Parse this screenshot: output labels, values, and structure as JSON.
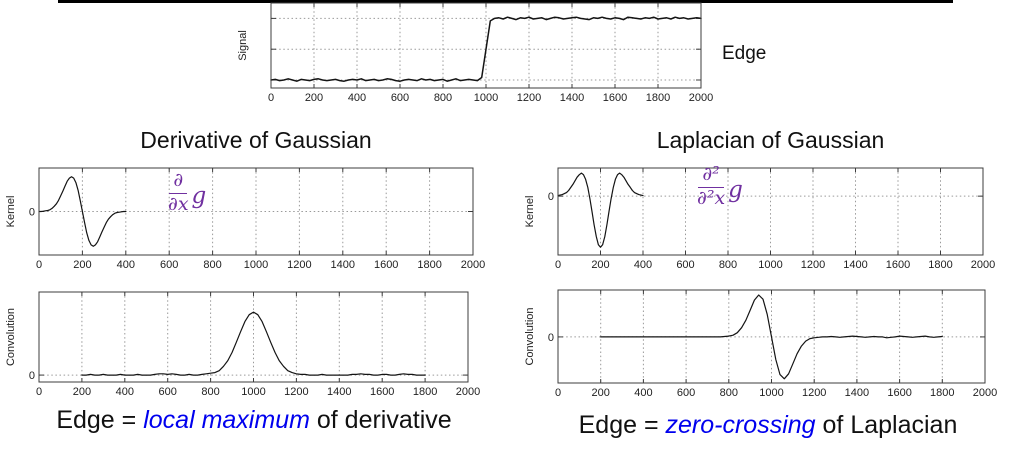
{
  "slide": {
    "background": "#ffffff",
    "accent_purple": "#7030a0",
    "accent_blue": "#0000ee",
    "edge_label": "Edge"
  },
  "left_panel": {
    "title": "Derivative of Gaussian",
    "formula": {
      "numerator": "∂",
      "denominator": "∂x",
      "factor": "g"
    },
    "caption": {
      "prefix": "Edge = ",
      "highlight": "local maximum",
      "suffix": " of derivative"
    }
  },
  "right_panel": {
    "title": "Laplacian of Gaussian",
    "formula": {
      "numerator": "∂²",
      "denominator": "∂²x",
      "factor": "g"
    },
    "caption": {
      "prefix": "Edge = ",
      "highlight": "zero-crossing",
      "suffix": " of Laplacian"
    }
  },
  "chart_data": [
    {
      "id": "signal",
      "type": "line",
      "ylabel": "Signal",
      "xlim": [
        0,
        2000
      ],
      "xticks": [
        0,
        200,
        400,
        600,
        800,
        1000,
        1200,
        1400,
        1600,
        1800,
        2000
      ],
      "ylim": [
        -0.13,
        1.25
      ],
      "hlines": [
        0,
        0.5,
        1
      ],
      "yticks": [
        {
          "v": 0,
          "label": ""
        },
        {
          "v": 0.5,
          "label": ""
        },
        {
          "v": 1,
          "label": ""
        }
      ],
      "thick": true,
      "series": {
        "x_start": 0,
        "x_step": 20,
        "y": [
          0.0,
          0.01,
          -0.01,
          0.0,
          0.02,
          0.0,
          -0.02,
          0.01,
          0.0,
          -0.01,
          0.01,
          0.02,
          0.0,
          -0.01,
          0.0,
          0.01,
          -0.01,
          -0.02,
          0.0,
          0.01,
          0.0,
          0.02,
          -0.01,
          0.0,
          0.01,
          -0.01,
          0.0,
          0.02,
          0.01,
          -0.01,
          -0.02,
          0.0,
          0.01,
          0.0,
          -0.01,
          0.02,
          0.0,
          0.01,
          -0.01,
          0.0,
          0.01,
          -0.02,
          0.0,
          0.02,
          -0.01,
          0.0,
          0.01,
          0.0,
          -0.01,
          0.04,
          0.5,
          0.96,
          1.0,
          1.01,
          0.99,
          1.02,
          1.0,
          0.98,
          1.01,
          1.0,
          1.02,
          0.99,
          1.0,
          1.01,
          0.98,
          1.0,
          1.02,
          1.01,
          0.99,
          1.0,
          1.01,
          1.02,
          1.0,
          0.99,
          0.98,
          1.01,
          1.0,
          1.02,
          1.0,
          0.99,
          1.01,
          1.0,
          0.98,
          1.02,
          1.01,
          1.0,
          0.99,
          1.01,
          1.0,
          1.02,
          0.99,
          1.0,
          1.01,
          0.99,
          1.02,
          1.0,
          1.01,
          0.99,
          1.0,
          1.01,
          1.0
        ]
      }
    },
    {
      "id": "dog_kernel",
      "type": "line",
      "ylabel": "Kernel",
      "xlim": [
        0,
        2000
      ],
      "xticks": [
        0,
        200,
        400,
        600,
        800,
        1000,
        1200,
        1400,
        1600,
        1800,
        2000
      ],
      "ylim": [
        -1.25,
        1.25
      ],
      "hlines": [
        0
      ],
      "yticks": [
        {
          "v": 0,
          "label": "0"
        }
      ],
      "series": {
        "x_start": 0,
        "x_step": 10,
        "y": [
          0.0,
          0.0,
          0.01,
          0.02,
          0.03,
          0.05,
          0.09,
          0.15,
          0.22,
          0.32,
          0.45,
          0.59,
          0.73,
          0.87,
          0.96,
          1.0,
          0.96,
          0.83,
          0.61,
          0.32,
          0.0,
          -0.32,
          -0.61,
          -0.83,
          -0.96,
          -1.0,
          -0.96,
          -0.87,
          -0.73,
          -0.59,
          -0.45,
          -0.32,
          -0.22,
          -0.15,
          -0.09,
          -0.05,
          -0.03,
          -0.02,
          -0.01,
          0.0,
          0.0
        ]
      }
    },
    {
      "id": "log_kernel",
      "type": "line",
      "ylabel": "Kernel",
      "xlim": [
        0,
        2000
      ],
      "xticks": [
        0,
        200,
        400,
        600,
        800,
        1000,
        1200,
        1400,
        1600,
        1800,
        2000
      ],
      "ylim": [
        -1.15,
        0.55
      ],
      "hlines": [
        0
      ],
      "yticks": [
        {
          "v": 0,
          "label": "0"
        }
      ],
      "series": {
        "x_start": 0,
        "x_step": 10,
        "y": [
          0.01,
          0.02,
          0.03,
          0.05,
          0.07,
          0.11,
          0.17,
          0.23,
          0.3,
          0.37,
          0.42,
          0.45,
          0.42,
          0.33,
          0.17,
          -0.05,
          -0.3,
          -0.56,
          -0.79,
          -0.95,
          -1.0,
          -0.95,
          -0.79,
          -0.56,
          -0.3,
          -0.05,
          0.17,
          0.33,
          0.42,
          0.45,
          0.42,
          0.37,
          0.3,
          0.23,
          0.17,
          0.11,
          0.07,
          0.05,
          0.03,
          0.02,
          0.01
        ]
      }
    },
    {
      "id": "dog_conv",
      "type": "line",
      "ylabel": "Convolution",
      "xlim": [
        0,
        2000
      ],
      "xticks": [
        0,
        200,
        400,
        600,
        800,
        1000,
        1200,
        1400,
        1600,
        1800,
        2000
      ],
      "ylim": [
        -0.11,
        1.32
      ],
      "hlines": [
        0
      ],
      "yticks": [
        {
          "v": 0,
          "label": "0"
        }
      ],
      "series": {
        "x_start": 200,
        "x_step": 20,
        "y": [
          0.0,
          0.0,
          0.01,
          0.0,
          0.0,
          0.01,
          0.0,
          0.0,
          0.0,
          0.01,
          0.0,
          0.0,
          0.0,
          0.01,
          0.0,
          0.0,
          0.0,
          0.01,
          0.02,
          0.02,
          0.01,
          0.02,
          0.01,
          0.0,
          0.0,
          0.01,
          0.0,
          0.0,
          0.01,
          0.02,
          0.03,
          0.04,
          0.07,
          0.14,
          0.23,
          0.36,
          0.52,
          0.69,
          0.85,
          0.96,
          1.0,
          0.96,
          0.85,
          0.69,
          0.52,
          0.36,
          0.23,
          0.14,
          0.07,
          0.04,
          0.02,
          0.01,
          0.01,
          0.0,
          0.0,
          0.0,
          0.01,
          0.0,
          0.0,
          0.0,
          0.0,
          0.0,
          0.0,
          0.01,
          0.01,
          0.02,
          0.01,
          0.01,
          0.0,
          0.0,
          0.01,
          0.01,
          0.0,
          0.0,
          0.01,
          0.02,
          0.01,
          0.01,
          0.0,
          0.0,
          0.0
        ]
      }
    },
    {
      "id": "log_conv",
      "type": "line",
      "ylabel": "Convolution",
      "xlim": [
        0,
        2000
      ],
      "xticks": [
        0,
        200,
        400,
        600,
        800,
        1000,
        1200,
        1400,
        1600,
        1800,
        2000
      ],
      "ylim": [
        -1.1,
        1.12
      ],
      "hlines": [
        0
      ],
      "yticks": [
        {
          "v": 0,
          "label": "0"
        }
      ],
      "series": {
        "x_start": 200,
        "x_step": 20,
        "y": [
          0.0,
          0.0,
          0.0,
          0.0,
          0.0,
          0.0,
          0.0,
          0.0,
          0.0,
          0.0,
          0.0,
          0.0,
          0.0,
          0.0,
          0.0,
          0.0,
          0.0,
          0.0,
          0.0,
          0.0,
          0.0,
          0.0,
          0.0,
          0.0,
          0.0,
          0.0,
          0.0,
          0.0,
          0.0,
          0.01,
          0.02,
          0.04,
          0.1,
          0.22,
          0.4,
          0.64,
          0.88,
          1.0,
          0.9,
          0.54,
          0.0,
          -0.54,
          -0.9,
          -1.0,
          -0.88,
          -0.64,
          -0.4,
          -0.22,
          -0.1,
          -0.04,
          -0.02,
          -0.01,
          0.0,
          0.0,
          0.01,
          0.0,
          -0.01,
          0.0,
          0.01,
          0.02,
          0.01,
          0.0,
          -0.01,
          0.0,
          0.01,
          0.0,
          0.0,
          -0.02,
          -0.01,
          0.0,
          0.02,
          0.01,
          0.0,
          -0.01,
          0.0,
          0.01,
          0.02,
          0.0,
          -0.01,
          0.0,
          0.01
        ]
      }
    }
  ]
}
